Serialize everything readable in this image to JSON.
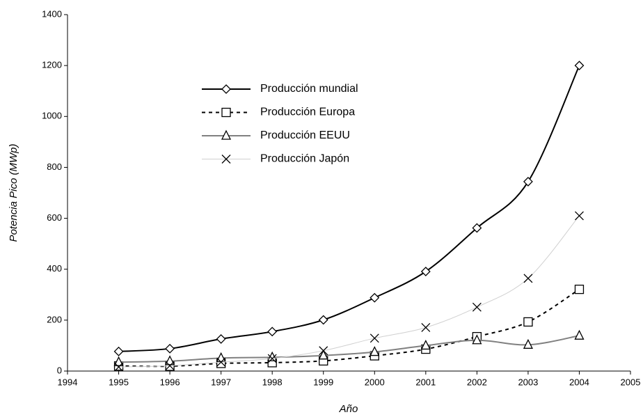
{
  "chart_data": {
    "type": "line",
    "x_label": "Año",
    "y_label": "Potencia Pico (MWp)",
    "x": [
      1995,
      1996,
      1997,
      1998,
      1999,
      2000,
      2001,
      2002,
      2003,
      2004
    ],
    "xlim": [
      1994,
      2005
    ],
    "xticks": [
      1994,
      1995,
      1996,
      1997,
      1998,
      1999,
      2000,
      2001,
      2002,
      2003,
      2004,
      2005
    ],
    "ylim": [
      0,
      1400
    ],
    "yticks": [
      0,
      200,
      400,
      600,
      800,
      1000,
      1200,
      1400
    ],
    "smooth": true,
    "series": [
      {
        "name": "Producción mundial",
        "color": "#000000",
        "line_width": 2,
        "line_style": "solid",
        "marker": "diamond",
        "values": [
          77,
          88,
          126,
          155,
          201,
          288,
          391,
          562,
          744,
          1200
        ]
      },
      {
        "name": "Producción Europa",
        "color": "#000000",
        "line_width": 2,
        "line_style": "dashed",
        "marker": "square",
        "values": [
          20,
          19,
          30,
          33,
          40,
          60,
          86,
          135,
          193,
          321
        ]
      },
      {
        "name": "Producción EEUU",
        "color": "#808080",
        "line_width": 2,
        "line_style": "solid",
        "marker": "triangle",
        "values": [
          35,
          39,
          51,
          54,
          61,
          75,
          100,
          121,
          103,
          139
        ]
      },
      {
        "name": "Producción Japón",
        "color": "#d0d0d0",
        "line_width": 1,
        "line_style": "solid",
        "marker": "cross",
        "values": [
          16,
          21,
          35,
          49,
          80,
          129,
          171,
          251,
          364,
          610
        ]
      }
    ]
  }
}
